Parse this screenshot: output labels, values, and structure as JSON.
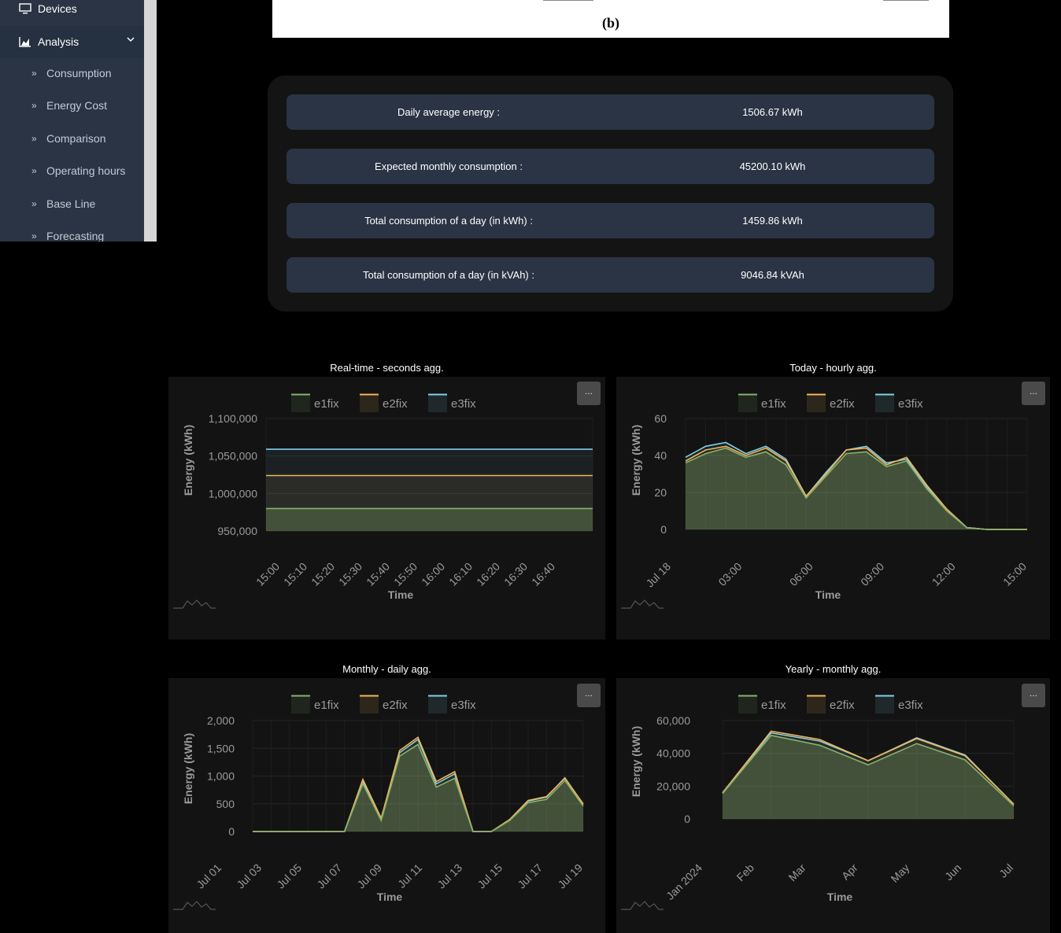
{
  "sidebar": {
    "devices_label": "Devices",
    "analysis_label": "Analysis",
    "items": [
      {
        "label": "Consumption"
      },
      {
        "label": "Energy Cost"
      },
      {
        "label": "Comparison"
      },
      {
        "label": "Operating hours"
      },
      {
        "label": "Base Line"
      },
      {
        "label": "Forecasting"
      }
    ]
  },
  "figure": {
    "label": "(b)"
  },
  "stats": [
    {
      "label": "Daily average energy :",
      "value": "1506.67 kWh"
    },
    {
      "label": "Expected monthly consumption :",
      "value": "45200.10 kWh"
    },
    {
      "label": "Total consumption of a day (in kWh) :",
      "value": "1459.86 kWh"
    },
    {
      "label": "Total consumption of a day (in kVAh) :",
      "value": "9046.84 kVAh"
    }
  ],
  "colors": {
    "e1fix": "#86b36d",
    "e2fix": "#f2b45a",
    "e3fix": "#7fd0e8"
  },
  "chart_data": [
    {
      "type": "area",
      "title": "Real-time - seconds agg.",
      "xlabel": "Time",
      "ylabel": "Energy (kWh)",
      "ylim": [
        950000,
        1100000
      ],
      "yticks": [
        "1,100,000",
        "1,050,000",
        "1,000,000",
        "950,000"
      ],
      "x_ticks": [
        "15:00",
        "15:10",
        "15:20",
        "15:30",
        "15:40",
        "15:50",
        "16:00",
        "16:10",
        "16:20",
        "16:30",
        "16:40"
      ],
      "x": [
        "14:58",
        "16:58"
      ],
      "series": [
        {
          "name": "e1fix",
          "values": [
            980000,
            980000
          ]
        },
        {
          "name": "e2fix",
          "values": [
            1024000,
            1024000
          ]
        },
        {
          "name": "e3fix",
          "values": [
            1059000,
            1059000
          ]
        }
      ],
      "menu": "..."
    },
    {
      "type": "area",
      "title": "Today - hourly agg.",
      "xlabel": "Time",
      "ylabel": "Energy (kWh)",
      "ylim": [
        0,
        60
      ],
      "yticks": [
        "60",
        "40",
        "20",
        "0"
      ],
      "x_ticks": [
        "Jul 18",
        "03:00",
        "06:00",
        "09:00",
        "12:00",
        "15:00"
      ],
      "x": [
        "00:00",
        "01:00",
        "02:00",
        "03:00",
        "04:00",
        "05:00",
        "06:00",
        "07:00",
        "08:00",
        "09:00",
        "10:00",
        "11:00",
        "12:00",
        "13:00",
        "14:00",
        "15:00",
        "16:00",
        "17:00"
      ],
      "series": [
        {
          "name": "e1fix",
          "values": [
            36,
            41,
            44,
            39,
            42,
            35,
            17,
            29,
            41,
            42,
            34,
            37,
            22,
            10,
            1,
            0,
            0,
            0
          ]
        },
        {
          "name": "e2fix",
          "values": [
            37,
            43,
            45,
            40,
            44,
            37,
            18,
            30,
            43,
            44,
            35,
            39,
            24,
            11,
            1,
            0,
            0,
            0
          ]
        },
        {
          "name": "e3fix",
          "values": [
            39,
            45,
            47,
            41,
            45,
            38,
            18,
            31,
            43,
            45,
            36,
            38,
            23,
            11,
            1,
            0,
            0,
            0
          ]
        }
      ],
      "menu": "..."
    },
    {
      "type": "area",
      "title": "Monthly - daily agg.",
      "xlabel": "Time",
      "ylabel": "Energy (kWh)",
      "ylim": [
        0,
        2000
      ],
      "yticks": [
        "2,000",
        "1,500",
        "1,000",
        "500",
        "0"
      ],
      "x_ticks": [
        "Jul 01",
        "Jul 03",
        "Jul 05",
        "Jul 07",
        "Jul 09",
        "Jul 11",
        "Jul 13",
        "Jul 15",
        "Jul 17",
        "Jul 19"
      ],
      "x": [
        "Jul 01",
        "Jul 02",
        "Jul 03",
        "Jul 04",
        "Jul 05",
        "Jul 06",
        "Jul 07",
        "Jul 08",
        "Jul 09",
        "Jul 10",
        "Jul 11",
        "Jul 12",
        "Jul 13",
        "Jul 14",
        "Jul 15",
        "Jul 16",
        "Jul 17",
        "Jul 18",
        "Jul 19"
      ],
      "series": [
        {
          "name": "e1fix",
          "values": [
            0,
            0,
            0,
            0,
            0,
            0,
            860,
            200,
            1360,
            1570,
            800,
            960,
            0,
            0,
            200,
            520,
            580,
            920,
            460
          ]
        },
        {
          "name": "e2fix",
          "values": [
            0,
            0,
            0,
            0,
            0,
            0,
            940,
            240,
            1460,
            1700,
            900,
            1080,
            0,
            0,
            220,
            560,
            630,
            960,
            500
          ]
        },
        {
          "name": "e3fix",
          "values": [
            0,
            0,
            0,
            0,
            0,
            0,
            900,
            220,
            1420,
            1660,
            860,
            1040,
            0,
            0,
            210,
            550,
            620,
            970,
            490
          ]
        }
      ],
      "menu": "..."
    },
    {
      "type": "area",
      "title": "Yearly - monthly agg.",
      "xlabel": "Time",
      "ylabel": "Energy (kWh)",
      "ylim": [
        0,
        60000
      ],
      "yticks": [
        "60,000",
        "40,000",
        "20,000",
        "0"
      ],
      "x_ticks": [
        "Jan 2024",
        "Feb",
        "Mar",
        "Apr",
        "May",
        "Jun",
        "Jul"
      ],
      "x": [
        "Jan 2024",
        "Feb",
        "Mar",
        "Apr",
        "May",
        "Jun",
        "Jul"
      ],
      "series": [
        {
          "name": "e1fix",
          "values": [
            15500,
            51000,
            45000,
            33000,
            46000,
            36000,
            8000
          ]
        },
        {
          "name": "e2fix",
          "values": [
            16000,
            53500,
            48500,
            35500,
            49000,
            38500,
            9000
          ]
        },
        {
          "name": "e3fix",
          "values": [
            16000,
            52500,
            47500,
            35500,
            49500,
            39000,
            9000
          ]
        }
      ],
      "menu": "..."
    }
  ]
}
